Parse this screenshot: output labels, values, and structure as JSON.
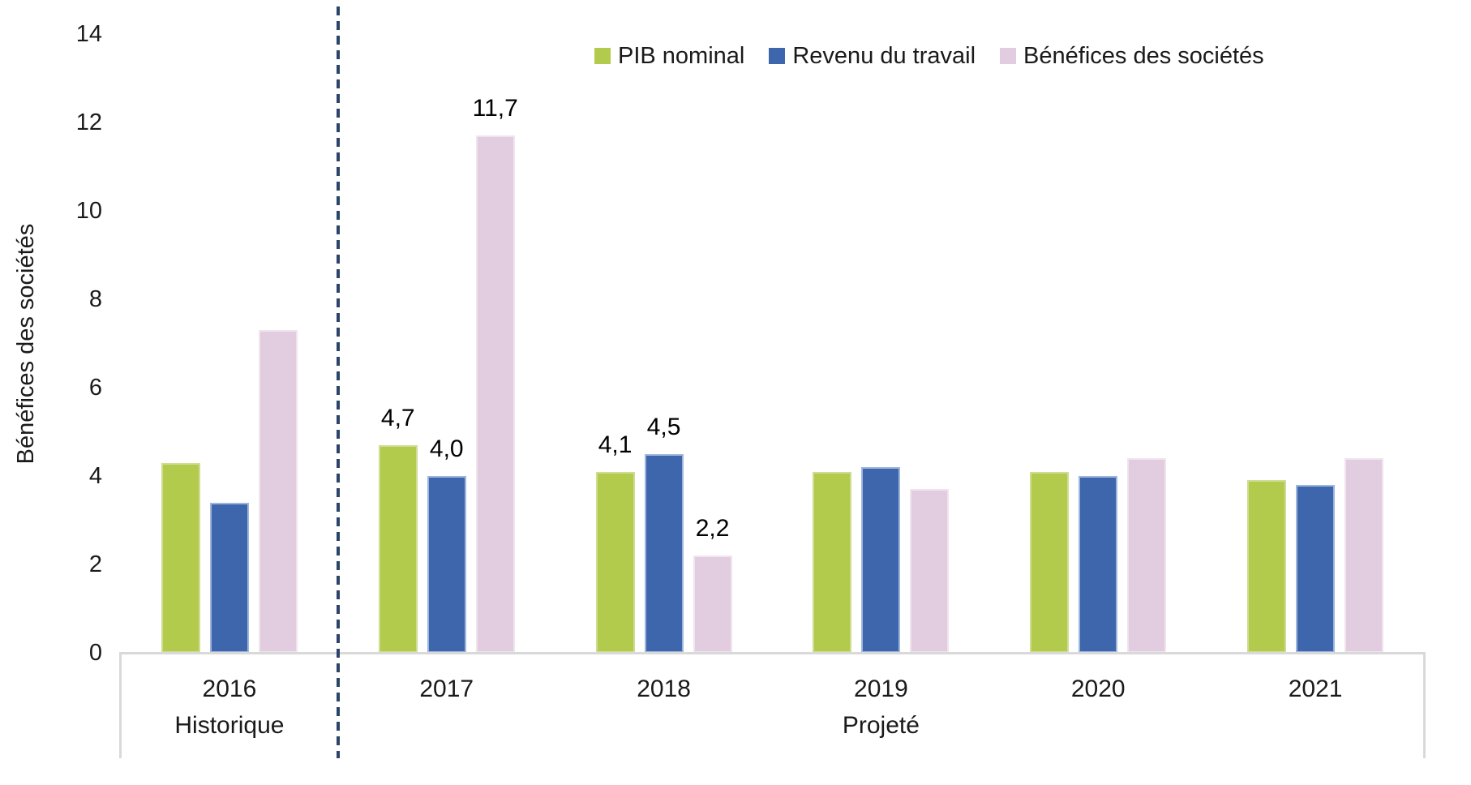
{
  "chart_data": {
    "type": "bar",
    "title": "",
    "ylabel": "Bénéfices des sociétés",
    "ylim": [
      0,
      14
    ],
    "yticks": [
      0,
      2,
      4,
      6,
      8,
      10,
      12,
      14
    ],
    "grid": false,
    "legend_position": "top",
    "categories": [
      "2016",
      "2017",
      "2018",
      "2019",
      "2020",
      "2021"
    ],
    "series": [
      {
        "name": "PIB nominal",
        "color": "#B3CB4C",
        "border": "#CEDD92",
        "values": [
          4.3,
          4.7,
          4.1,
          4.1,
          4.1,
          3.9
        ]
      },
      {
        "name": "Revenu du travail",
        "color": "#3E66AC",
        "border": "#9FB6DC",
        "values": [
          3.4,
          4.0,
          4.5,
          4.2,
          4.0,
          3.8
        ]
      },
      {
        "name": "Bénéfices des sociétés",
        "color": "#E2CDE0",
        "border": "#F0E4EE",
        "values": [
          7.3,
          11.7,
          2.2,
          3.7,
          4.4,
          4.4
        ]
      }
    ],
    "data_labels": {
      "2017": [
        "4,7",
        "4,0",
        "11,7"
      ],
      "2018": [
        "4,1",
        "4,5",
        "2,2"
      ]
    },
    "group_labels": [
      {
        "label": "Historique",
        "from": 0,
        "to": 0
      },
      {
        "label": "Projeté",
        "from": 1,
        "to": 5
      }
    ],
    "separator": {
      "style": "dashed",
      "color": "#2B4468",
      "after_category_index": 0
    },
    "axis_line_color": "#D9D9D9",
    "text_color": "#1a1a1a"
  }
}
